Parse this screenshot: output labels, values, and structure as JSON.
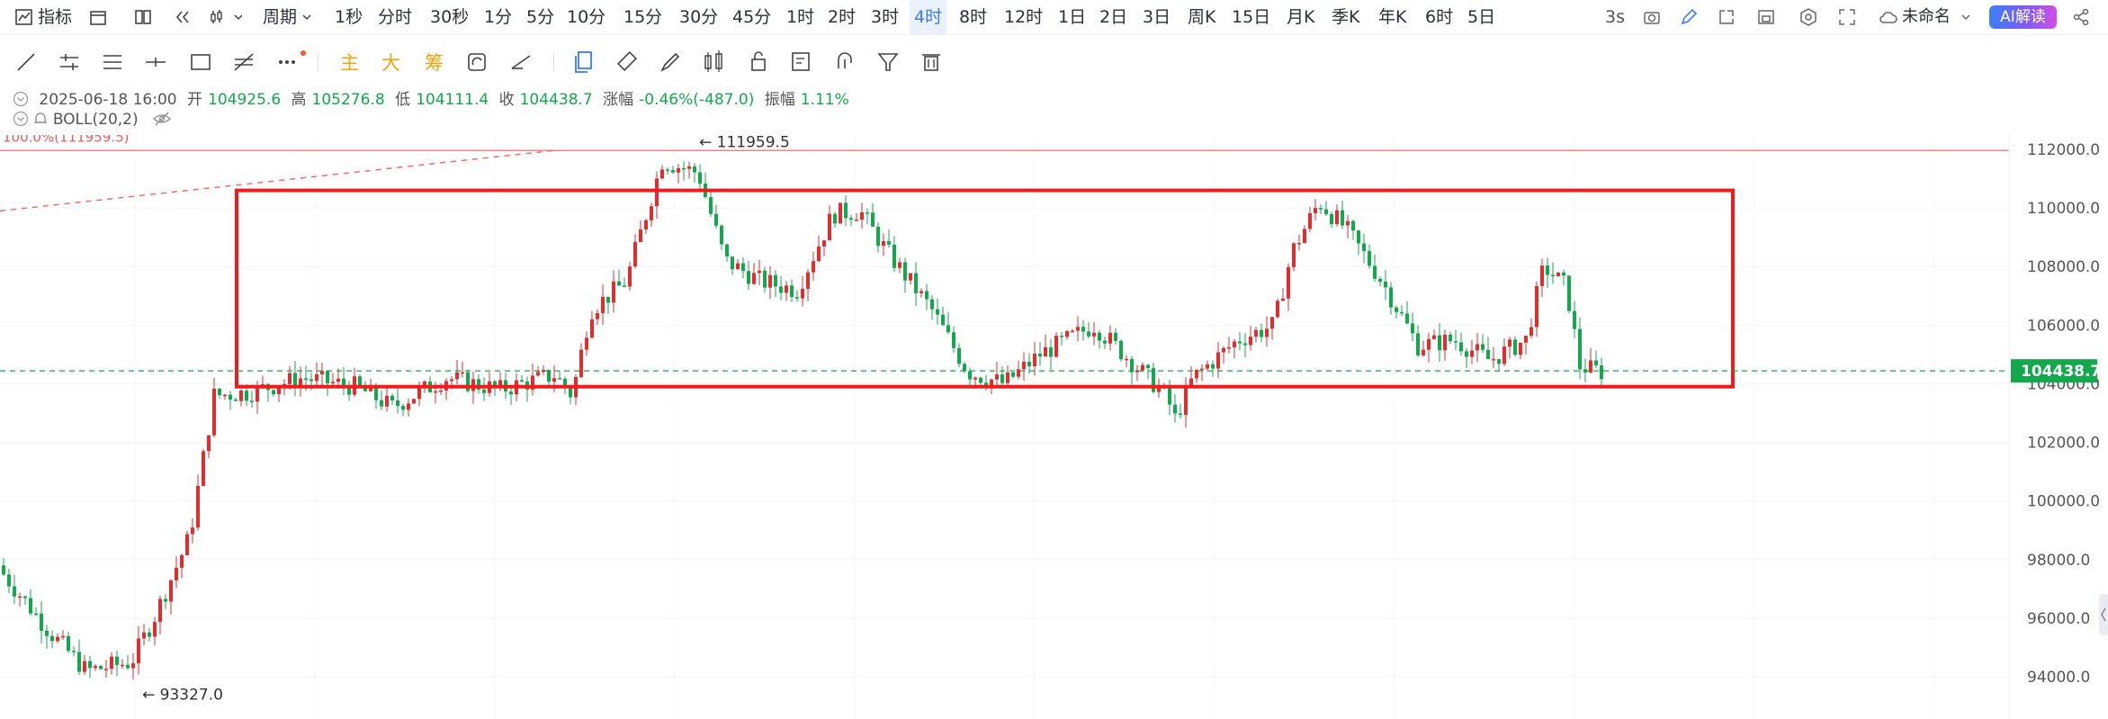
{
  "toolbar": {
    "indicators_label": "指标",
    "period_label": "周期",
    "timeframes": [
      "1秒",
      "分时",
      "30秒",
      "1分",
      "5分",
      "10分",
      "15分",
      "30分",
      "45分",
      "1时",
      "2时",
      "3时",
      "4时",
      "8时",
      "12时",
      "1日",
      "2日",
      "3日",
      "周K",
      "15日",
      "月K",
      "季K",
      "年K",
      "6时",
      "5日"
    ],
    "active_timeframe": "4时",
    "refresh_label": "3s",
    "layout_name": "未命名",
    "ai_label": "AI解读"
  },
  "drawing_toolbar": {
    "main_label": "主",
    "big_label": "大",
    "chip_label": "筹"
  },
  "ohlc": {
    "date": "2025-06-18 16:00",
    "open_label": "开",
    "open": "104925.6",
    "high_label": "高",
    "high": "105276.8",
    "low_label": "低",
    "low": "104111.4",
    "close_label": "收",
    "close": "104438.7",
    "change_label": "涨幅",
    "change": "-0.46%(-487.0)",
    "amplitude_label": "振幅",
    "amplitude": "1.11%"
  },
  "indicator": {
    "name": "BOLL(20,2)"
  },
  "colors": {
    "up": "#13a84c",
    "down": "#e02e2e",
    "accent": "#3a7bf0",
    "range_box": "#f21b1b"
  },
  "chart_data": {
    "type": "candlestick",
    "y_ticks": [
      "112000.0",
      "110000.0",
      "108000.0",
      "106000.0",
      "104000.0",
      "102000.0",
      "100000.0",
      "98000.0",
      "96000.0",
      "94000.0"
    ],
    "ylim": [
      93000,
      113000
    ],
    "last_price": "104438.7",
    "fib_label": "100.0%(111959.5)",
    "high_annotation": "111959.5",
    "low_annotation": "93327.0",
    "range_box": {
      "top": 110600,
      "bottom": 103900
    },
    "grid": true
  }
}
